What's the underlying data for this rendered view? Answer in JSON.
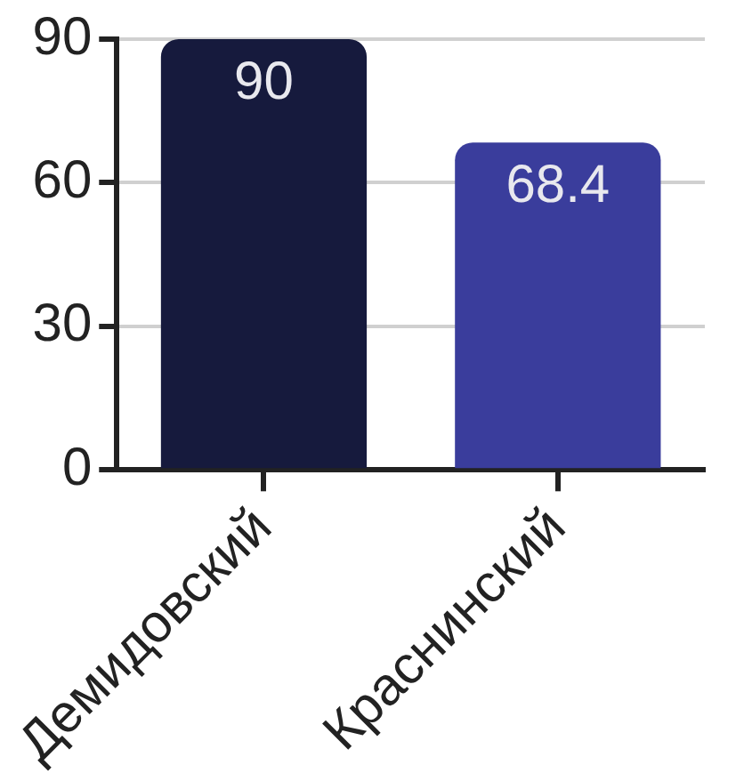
{
  "chart_data": {
    "type": "bar",
    "categories": [
      "Демидовский",
      "Краснинский"
    ],
    "values": [
      90,
      68.4
    ],
    "colors": [
      "#161a3d",
      "#3a3d9c"
    ],
    "ylim": [
      0,
      90
    ],
    "yticks": [
      0,
      30,
      60,
      90
    ],
    "grid": "y",
    "data_labels": true
  }
}
